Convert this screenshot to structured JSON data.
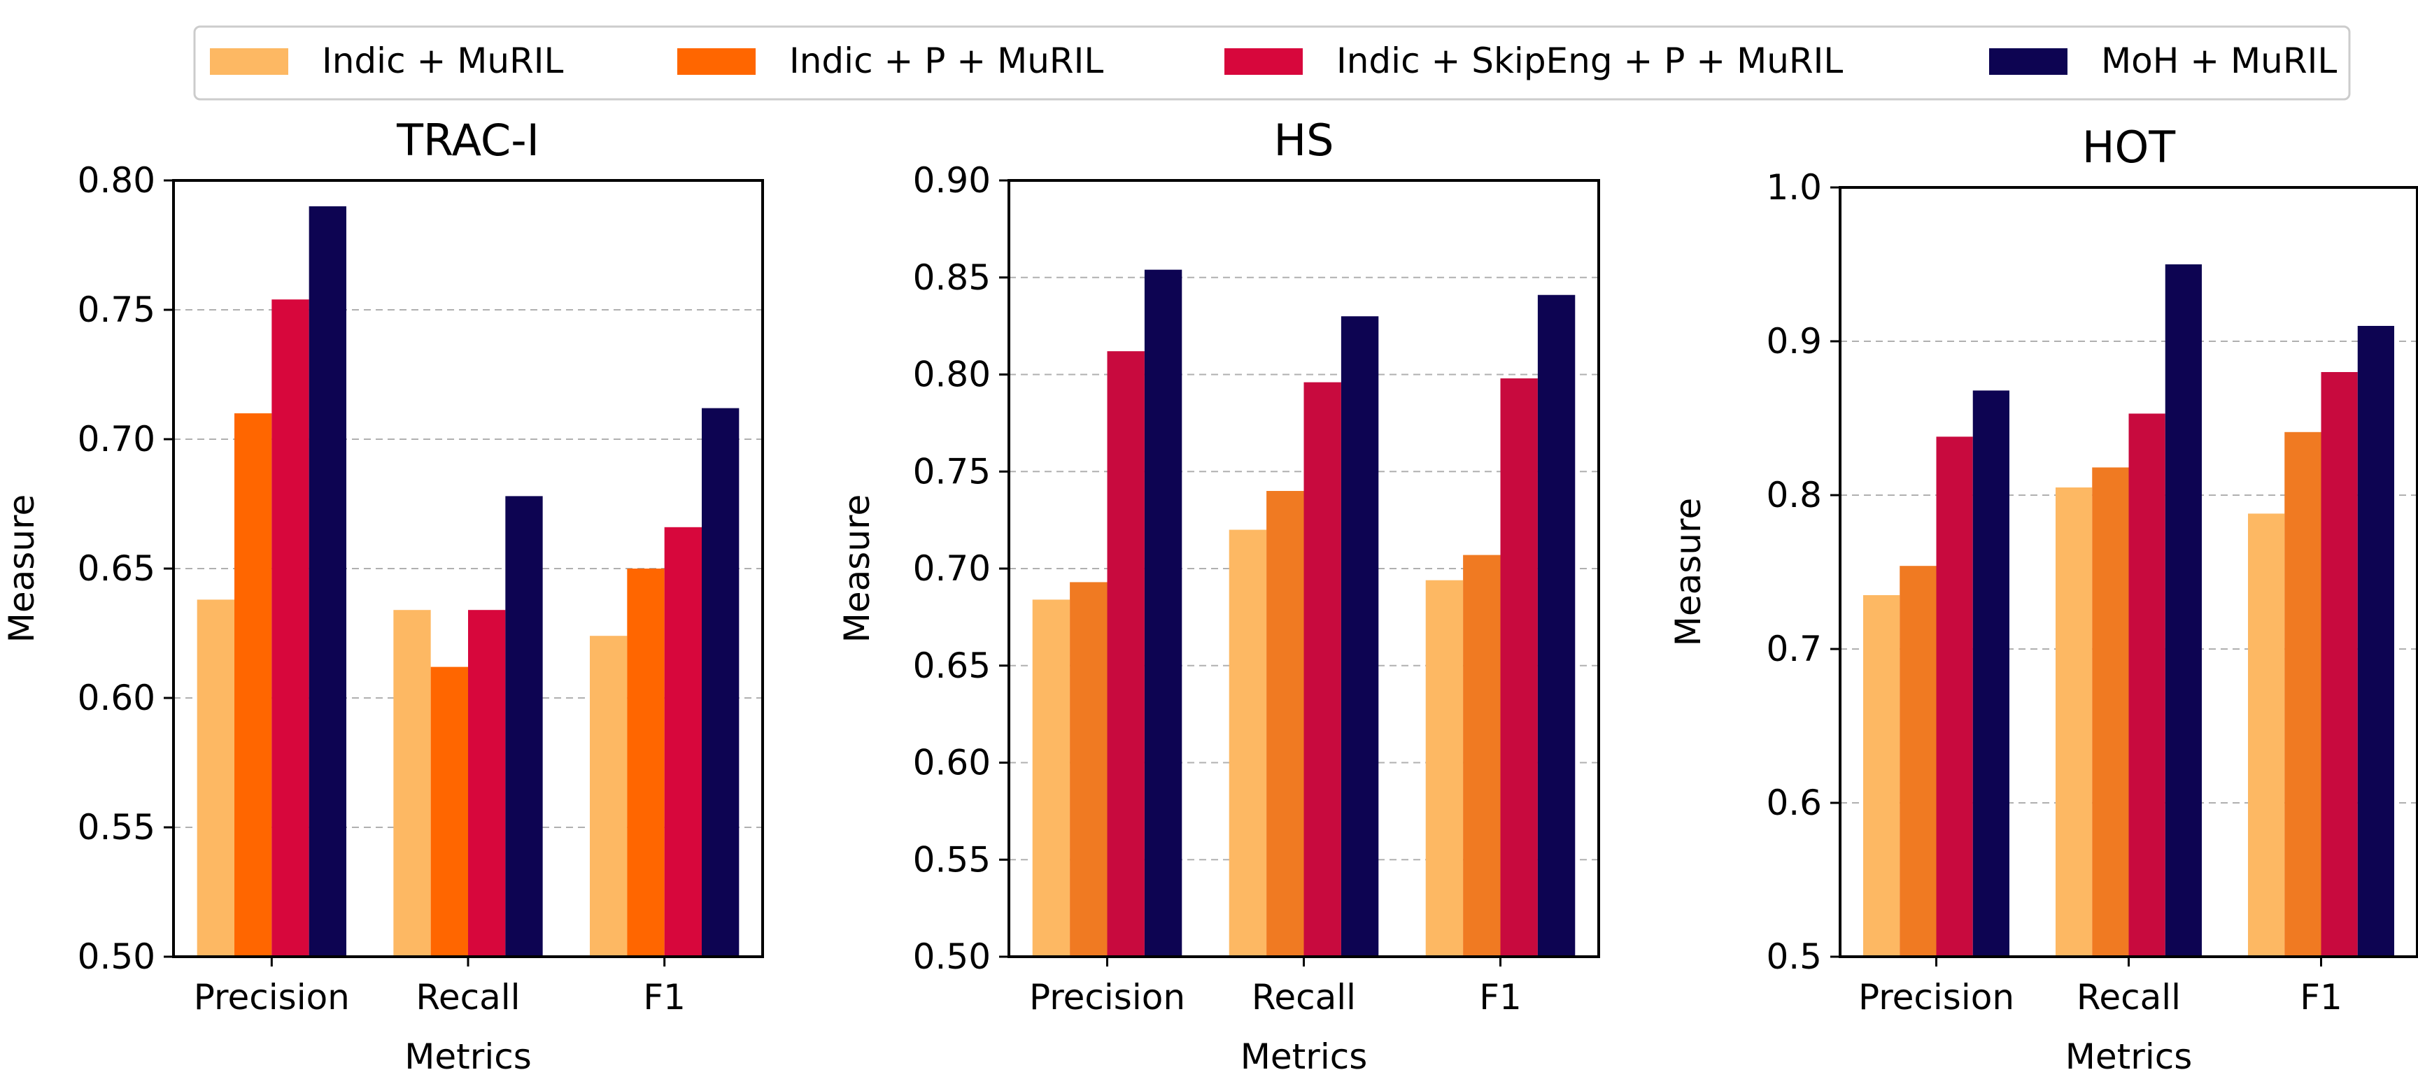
{
  "legend": {
    "entries": [
      {
        "label": "Indic + MuRIL",
        "color": "#fdb863"
      },
      {
        "label": "Indic + P + MuRIL",
        "color": "#ff6600"
      },
      {
        "label": "Indic + SkipEng + P + MuRIL",
        "color": "#d7073c"
      },
      {
        "label": "MoH + MuRIL",
        "color": "#0d0452"
      }
    ],
    "placement": "top-center"
  },
  "chart_data": [
    {
      "type": "bar",
      "title": "TRAC-I",
      "xlabel": "Metrics",
      "ylabel": "Measure",
      "categories": [
        "Precision",
        "Recall",
        "F1"
      ],
      "ylim": [
        0.5,
        0.8
      ],
      "yticks": [
        "0.50",
        "0.55",
        "0.60",
        "0.65",
        "0.70",
        "0.75",
        "0.80"
      ],
      "grid": true,
      "series": [
        {
          "name": "Indic + MuRIL",
          "color": "#fdb863",
          "values": [
            0.638,
            0.634,
            0.624
          ]
        },
        {
          "name": "Indic + P + MuRIL",
          "color": "#ff6600",
          "values": [
            0.71,
            0.612,
            0.65
          ]
        },
        {
          "name": "Indic + SkipEng + P + MuRIL",
          "color": "#d7073c",
          "values": [
            0.754,
            0.634,
            0.666
          ]
        },
        {
          "name": "MoH + MuRIL",
          "color": "#0d0452",
          "values": [
            0.79,
            0.678,
            0.712
          ]
        }
      ]
    },
    {
      "type": "bar",
      "title": "HS",
      "xlabel": "Metrics",
      "ylabel": "Measure",
      "categories": [
        "Precision",
        "Recall",
        "F1"
      ],
      "ylim": [
        0.5,
        0.9
      ],
      "yticks": [
        "0.50",
        "0.55",
        "0.60",
        "0.65",
        "0.70",
        "0.75",
        "0.80",
        "0.85",
        "0.90"
      ],
      "grid": true,
      "series": [
        {
          "name": "Indic + MuRIL",
          "color": "#fdb863",
          "values": [
            0.684,
            0.72,
            0.694
          ]
        },
        {
          "name": "Indic + P + MuRIL",
          "color": "#f07a22",
          "values": [
            0.693,
            0.74,
            0.707
          ]
        },
        {
          "name": "Indic + SkipEng + P + MuRIL",
          "color": "#c80a3e",
          "values": [
            0.812,
            0.796,
            0.798
          ]
        },
        {
          "name": "MoH + MuRIL",
          "color": "#0d0452",
          "values": [
            0.854,
            0.83,
            0.841
          ]
        }
      ]
    },
    {
      "type": "bar",
      "title": "HOT",
      "xlabel": "Metrics",
      "ylabel": "Measure",
      "categories": [
        "Precision",
        "Recall",
        "F1"
      ],
      "ylim": [
        0.5,
        1.0
      ],
      "yticks": [
        "0.5",
        "0.6",
        "0.7",
        "0.8",
        "0.9",
        "1.0"
      ],
      "grid": true,
      "series": [
        {
          "name": "Indic + MuRIL",
          "color": "#fdb863",
          "values": [
            0.735,
            0.805,
            0.788
          ]
        },
        {
          "name": "Indic + P + MuRIL",
          "color": "#f07a22",
          "values": [
            0.754,
            0.818,
            0.841
          ]
        },
        {
          "name": "Indic + SkipEng + P + MuRIL",
          "color": "#c80a3e",
          "values": [
            0.838,
            0.853,
            0.88
          ]
        },
        {
          "name": "MoH + MuRIL",
          "color": "#0d0452",
          "values": [
            0.868,
            0.95,
            0.91
          ]
        }
      ]
    }
  ]
}
